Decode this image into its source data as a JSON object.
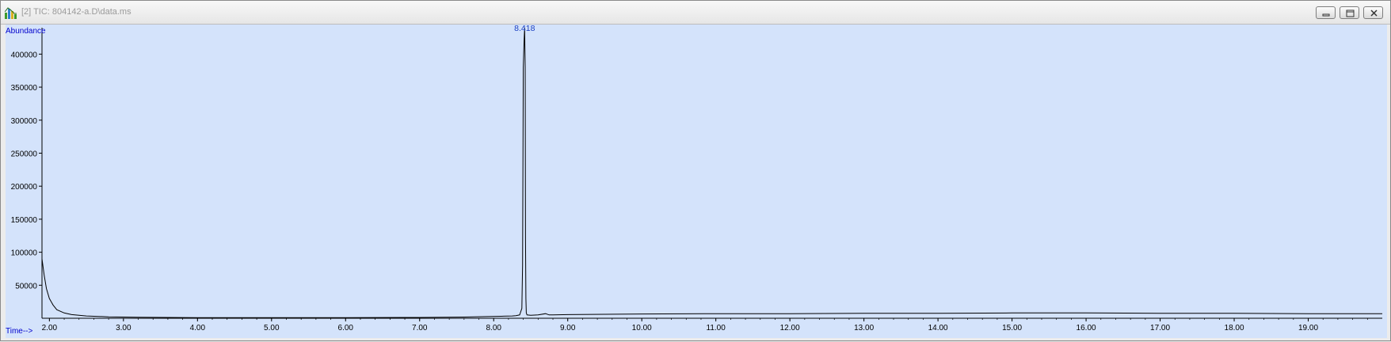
{
  "window": {
    "title": "[2] TIC: 804142-a.D\\data.ms",
    "controls": [
      "minimize",
      "restore",
      "close"
    ]
  },
  "colors": {
    "plot_background": "#d4e3fb",
    "trace": "#000000",
    "label_text": "#0000cc",
    "peak_label": "#1a3fc2"
  },
  "chart_data": {
    "type": "line",
    "title": "",
    "ylabel": "Abundance",
    "xlabel": "Time-->",
    "xlim": [
      1.9,
      20.0
    ],
    "ylim": [
      0,
      440000
    ],
    "x_ticks": [
      2.0,
      3.0,
      4.0,
      5.0,
      6.0,
      7.0,
      8.0,
      9.0,
      10.0,
      11.0,
      12.0,
      13.0,
      14.0,
      15.0,
      16.0,
      17.0,
      18.0,
      19.0
    ],
    "x_tick_labels": [
      "2.00",
      "3.00",
      "4.00",
      "5.00",
      "6.00",
      "7.00",
      "8.00",
      "9.00",
      "10.00",
      "11.00",
      "12.00",
      "13.00",
      "14.00",
      "15.00",
      "16.00",
      "17.00",
      "18.00",
      "19.00"
    ],
    "y_ticks": [
      50000,
      100000,
      150000,
      200000,
      250000,
      300000,
      350000,
      400000
    ],
    "y_tick_labels": [
      "50000",
      "100000",
      "150000",
      "200000",
      "250000",
      "300000",
      "350000",
      "400000"
    ],
    "grid": false,
    "series": [
      {
        "x": [
          1.9,
          1.93,
          1.96,
          2.0,
          2.05,
          2.1,
          2.2,
          2.3,
          2.5,
          2.8,
          3.2,
          4.0,
          5.0,
          6.0,
          7.0,
          7.6,
          7.9,
          8.1,
          8.25,
          8.3,
          8.35,
          8.38,
          8.39,
          8.4,
          8.41,
          8.418,
          8.425,
          8.43,
          8.435,
          8.44,
          8.45,
          8.5,
          8.6,
          8.7,
          8.75,
          8.8,
          9.0,
          9.5,
          10.0,
          11.0,
          12.0,
          13.0,
          14.0,
          15.0,
          16.0,
          17.0,
          18.0,
          19.0,
          20.0
        ],
        "y": [
          90000,
          65000,
          45000,
          30000,
          20000,
          13000,
          8000,
          5500,
          3500,
          2200,
          1500,
          1000,
          1000,
          1000,
          1200,
          1800,
          2500,
          3000,
          3500,
          4000,
          5000,
          15000,
          80000,
          380000,
          420000,
          440000,
          380000,
          120000,
          30000,
          8000,
          5000,
          4500,
          5000,
          7000,
          5000,
          5000,
          5500,
          6000,
          6500,
          7000,
          7000,
          7500,
          7500,
          8000,
          8000,
          7500,
          7500,
          7000,
          7000
        ]
      }
    ],
    "annotations": [
      {
        "text": "8.418",
        "x": 8.418,
        "y": 440000
      }
    ]
  }
}
